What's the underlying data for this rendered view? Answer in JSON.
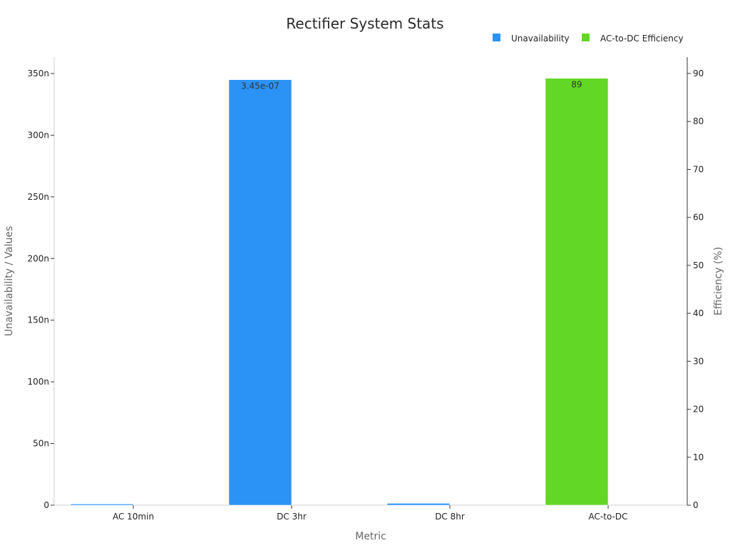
{
  "chart_data": {
    "type": "bar",
    "title": "Rectifier System Stats",
    "categories": [
      "AC 10min",
      "DC 3hr",
      "DC 8hr",
      "AC-to-DC"
    ],
    "xlabel": "Metric",
    "ylabel": "Unavailability / Values",
    "y2label": "Efficiency (%)",
    "ylim": [
      0,
      3.5e-07
    ],
    "y2lim": [
      0,
      90
    ],
    "yticks": [
      {
        "value": 0,
        "label": "0"
      },
      {
        "value": 5e-08,
        "label": "50n"
      },
      {
        "value": 1e-07,
        "label": "100n"
      },
      {
        "value": 1.5e-07,
        "label": "150n"
      },
      {
        "value": 2e-07,
        "label": "200n"
      },
      {
        "value": 2.5e-07,
        "label": "250n"
      },
      {
        "value": 3e-07,
        "label": "300n"
      },
      {
        "value": 3.5e-07,
        "label": "350n"
      }
    ],
    "y2ticks": [
      0,
      10,
      20,
      30,
      40,
      50,
      60,
      70,
      80,
      90
    ],
    "legend_position": "top-right",
    "series": [
      {
        "name": "Unavailability",
        "axis": "left",
        "color": "#2b92f6",
        "values": [
          1e-09,
          3.45e-07,
          1.5e-09,
          null
        ],
        "data_labels": [
          null,
          "3.45e-07",
          null,
          null
        ]
      },
      {
        "name": "AC-to-DC Efficiency",
        "axis": "right",
        "color": "#63d725",
        "values": [
          null,
          null,
          null,
          89
        ],
        "data_labels": [
          null,
          null,
          null,
          "89"
        ]
      }
    ]
  }
}
